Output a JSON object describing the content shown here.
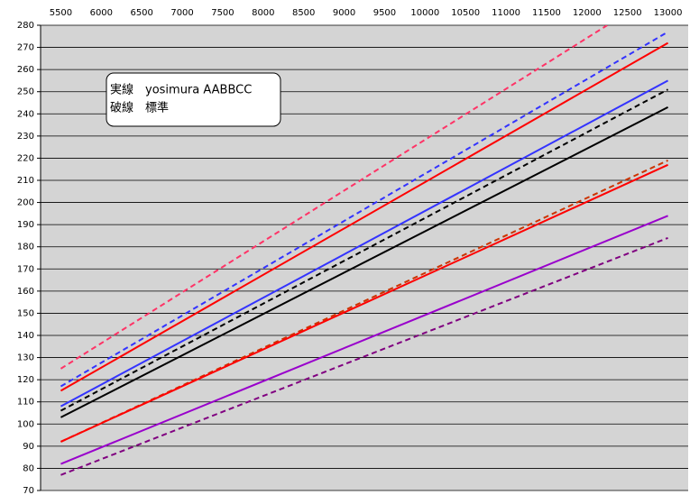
{
  "chart_data": {
    "type": "line",
    "annotations": [
      "実線　yosimura AABBCC",
      "破線　標準"
    ],
    "x": [
      5500,
      13000
    ],
    "xlim": [
      5250,
      13250
    ],
    "xticks": [
      5500,
      6000,
      6500,
      7000,
      7500,
      8000,
      8500,
      9000,
      9500,
      10000,
      10500,
      11000,
      11500,
      12000,
      12500,
      13000
    ],
    "ylim": [
      70,
      280
    ],
    "yticks": [
      70,
      80,
      90,
      100,
      110,
      120,
      130,
      140,
      150,
      160,
      170,
      180,
      190,
      200,
      210,
      220,
      230,
      240,
      250,
      260,
      270,
      280
    ],
    "grid": true,
    "plot_background": "#d4d4d4",
    "series": [
      {
        "color": "#ff3366",
        "dashed": true,
        "x": [
          5500,
          12250
        ],
        "values": [
          125,
          280
        ]
      },
      {
        "color": "#3333ff",
        "dashed": true,
        "values": [
          117,
          277
        ]
      },
      {
        "color": "#ff0000",
        "dashed": false,
        "values": [
          115,
          272
        ]
      },
      {
        "color": "#3333ff",
        "dashed": false,
        "values": [
          108,
          255
        ]
      },
      {
        "color": "#000000",
        "dashed": true,
        "values": [
          106,
          251
        ]
      },
      {
        "color": "#000000",
        "dashed": false,
        "values": [
          103,
          243
        ]
      },
      {
        "color": "#cc3300",
        "dashed": true,
        "values": [
          92,
          219
        ]
      },
      {
        "color": "#ff0000",
        "dashed": false,
        "values": [
          92,
          217
        ]
      },
      {
        "color": "#9900cc",
        "dashed": false,
        "values": [
          82,
          194
        ]
      },
      {
        "color": "#800080",
        "dashed": true,
        "values": [
          77,
          184
        ]
      }
    ]
  }
}
